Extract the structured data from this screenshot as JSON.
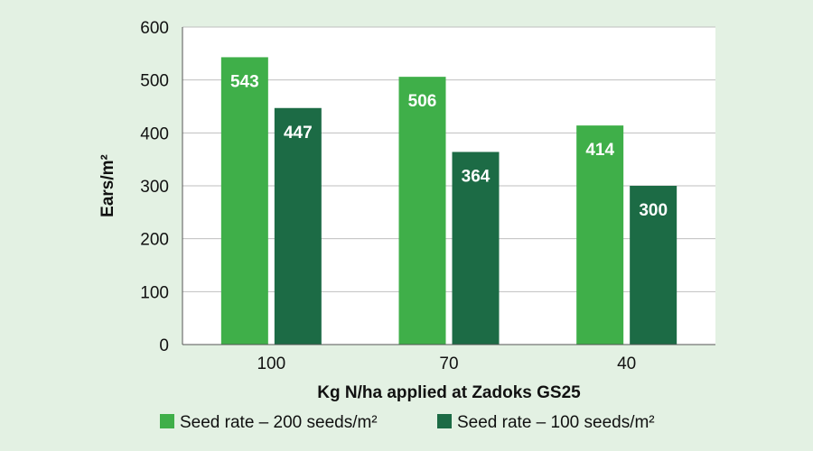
{
  "chart_data": {
    "type": "bar",
    "categories": [
      "100",
      "70",
      "40"
    ],
    "series": [
      {
        "name": "Seed rate – 200 seeds/m²",
        "values": [
          543,
          506,
          414
        ],
        "color": "#3faf49"
      },
      {
        "name": "Seed rate – 100 seeds/m²",
        "values": [
          447,
          364,
          300
        ],
        "color": "#1c6b45"
      }
    ],
    "xlabel": "Kg N/ha applied at Zadoks GS25",
    "ylabel": "Ears/m²",
    "ylim": [
      0,
      600
    ],
    "yticks": [
      0,
      100,
      200,
      300,
      400,
      500,
      600
    ],
    "grid": true,
    "legend": "bottom"
  },
  "colors": {
    "background": "#e3f1e3",
    "plot_background": "#ffffff",
    "grid": "#bfbfbf"
  }
}
